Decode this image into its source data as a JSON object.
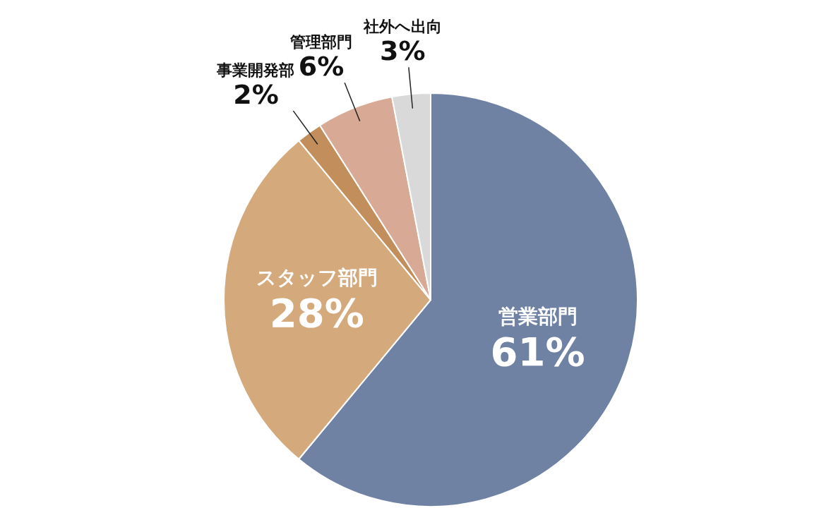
{
  "chart_data": {
    "type": "pie",
    "categories": [
      "営業部門",
      "スタッフ部門",
      "事業開発部",
      "管理部門",
      "社外へ出向"
    ],
    "values": [
      61,
      28,
      2,
      6,
      3
    ],
    "colors": [
      "#7082a3",
      "#d4aa7d",
      "#c28f5c",
      "#d8a994",
      "#d9d9d9"
    ],
    "value_labels": [
      "61%",
      "28%",
      "2%",
      "6%",
      "3%"
    ]
  }
}
